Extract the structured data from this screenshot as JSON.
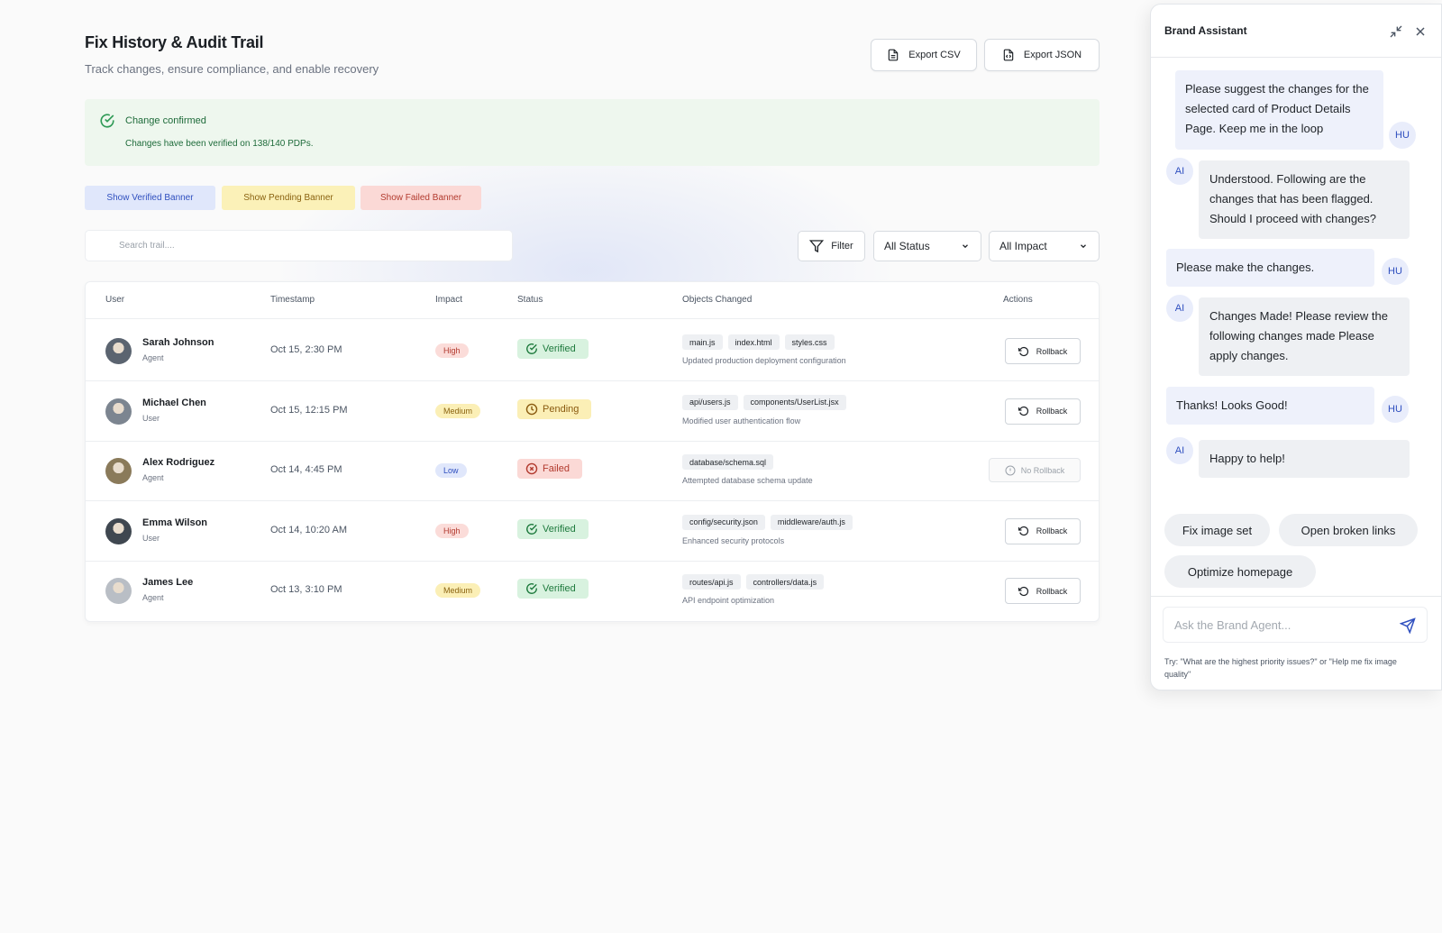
{
  "page": {
    "title": "Fix History & Audit Trail",
    "subtitle": "Track changes, ensure compliance, and enable recovery",
    "export_csv": "Export CSV",
    "export_json": "Export JSON"
  },
  "alert": {
    "title": "Change confirmed",
    "message": "Changes have been verified on 138/140 PDPs.",
    "color": "#1e6b3a"
  },
  "banners": {
    "verified": "Show Verified Banner",
    "pending": "Show Pending Banner",
    "failed": "Show Failed Banner"
  },
  "toolbar": {
    "search_placeholder": "Search trail....",
    "filter_label": "Filter",
    "status_select": "All Status",
    "impact_select": "All Impact"
  },
  "table": {
    "headers": [
      "User",
      "Timestamp",
      "Impact",
      "Status",
      "Objects Changed",
      "Actions"
    ],
    "rows": [
      {
        "name": "Sarah Johnson",
        "role": "Agent",
        "timestamp": "Oct 15, 2:30 PM",
        "impact": "High",
        "status": "Verified",
        "files": [
          "main.js",
          "index.html",
          "styles.css"
        ],
        "description": "Updated production deployment configuration",
        "action": "Rollback"
      },
      {
        "name": "Michael Chen",
        "role": "User",
        "timestamp": "Oct 15, 12:15 PM",
        "impact": "Medium",
        "status": "Pending",
        "files": [
          "api/users.js",
          "components/UserList.jsx"
        ],
        "description": "Modified user authentication flow",
        "action": "Rollback"
      },
      {
        "name": "Alex Rodriguez",
        "role": "Agent",
        "timestamp": "Oct 14, 4:45 PM",
        "impact": "Low",
        "status": "Failed",
        "files": [
          "database/schema.sql"
        ],
        "description": "Attempted database schema update",
        "action": "No Rollback"
      },
      {
        "name": "Emma Wilson",
        "role": "User",
        "timestamp": "Oct 14, 10:20 AM",
        "impact": "High",
        "status": "Verified",
        "files": [
          "config/security.json",
          "middleware/auth.js"
        ],
        "description": "Enhanced security protocols",
        "action": "Rollback"
      },
      {
        "name": "James Lee",
        "role": "Agent",
        "timestamp": "Oct 13, 3:10 PM",
        "impact": "Medium",
        "status": "Verified",
        "files": [
          "routes/api.js",
          "controllers/data.js"
        ],
        "description": "API endpoint optimization",
        "action": "Rollback"
      }
    ]
  },
  "assistant": {
    "title": "Brand Assistant",
    "hu_label": "HU",
    "ai_label": "AI",
    "messages": {
      "m1": "Please suggest the changes for the selected card of Product Details Page. Keep me in the loop",
      "m2": "Understood. Following are the changes that has been flagged. Should I proceed with changes?",
      "m3": "Please make the changes.",
      "m4": "Changes Made! Please review the following changes made Please apply changes.",
      "m5": "Thanks! Looks Good!",
      "m6": "Happy to help!"
    },
    "chips": {
      "c1": "Fix image set",
      "c2": "Open broken links",
      "c3": "Optimize homepage"
    },
    "input_placeholder": "Ask the Brand Agent...",
    "hint": "Try: \"What are the highest priority issues?\" or \"Help me fix image quality\""
  },
  "icons": {
    "export_csv": "file-icon",
    "export_json": "file-code-icon",
    "alert": "check-circle-icon",
    "filter": "funnel-icon",
    "select": "chevron-down-icon",
    "verified": "check-circle-icon",
    "pending": "clock-icon",
    "failed": "x-circle-icon",
    "rollback": "rotate-ccw-icon",
    "no_rollback": "info-icon",
    "minimize": "minimize-icon",
    "close": "close-icon",
    "send": "send-icon"
  },
  "colors": {
    "verified": "#1e7a3d",
    "pending": "#8a5a10",
    "failed": "#b23a2e",
    "accent": "#2f4fbf"
  }
}
